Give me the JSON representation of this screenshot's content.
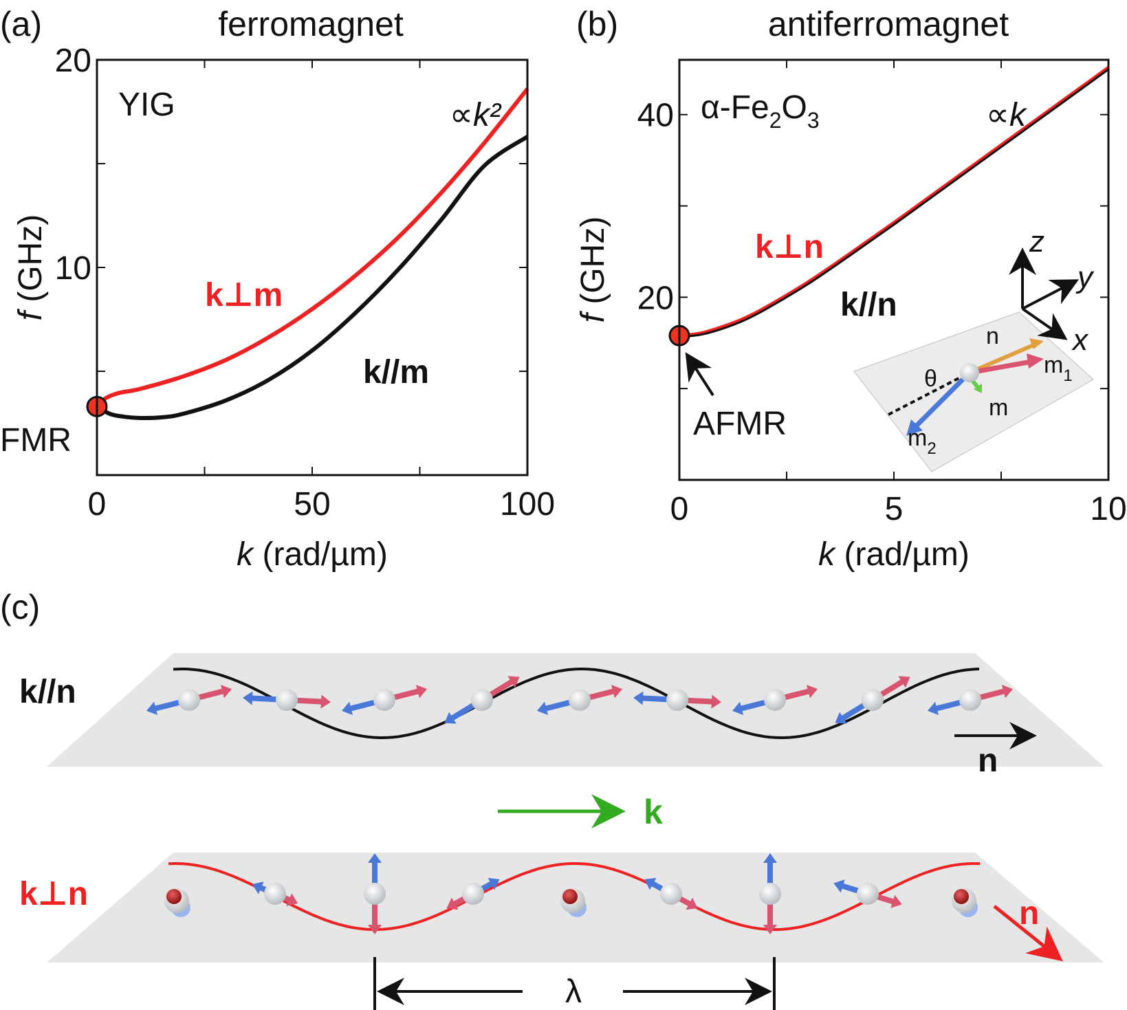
{
  "chart_data": [
    {
      "panel_label": "(a)",
      "title": "ferromagnet",
      "type": "line",
      "material": "YIG",
      "xlabel_var": "k",
      "xlabel_unit": " (rad/µm)",
      "ylabel_var": "f",
      "ylabel_unit": " (GHz)",
      "xlim": [
        0,
        100
      ],
      "ylim": [
        0,
        20
      ],
      "x_ticks": [
        0,
        50,
        100
      ],
      "y_ticks": [
        10,
        20
      ],
      "scaling": "∝k²",
      "point_label": "FMR",
      "point": {
        "x": 0,
        "y": 3.3
      },
      "series": [
        {
          "name": "k⊥m",
          "color": "#ee2222",
          "x": [
            0,
            2,
            5,
            10,
            20,
            30,
            40,
            50,
            60,
            70,
            80,
            90,
            100
          ],
          "y": [
            3.3,
            3.7,
            3.95,
            4.15,
            4.75,
            5.55,
            6.65,
            8.0,
            9.6,
            11.45,
            13.6,
            16.0,
            18.6
          ]
        },
        {
          "name": "k//m",
          "color": "#111111",
          "x": [
            0,
            3,
            6,
            10,
            15,
            20,
            30,
            40,
            50,
            60,
            70,
            80,
            90,
            100
          ],
          "y": [
            3.3,
            2.95,
            2.82,
            2.75,
            2.78,
            2.95,
            3.6,
            4.6,
            6.0,
            7.8,
            9.9,
            12.3,
            14.9,
            16.3
          ]
        }
      ]
    },
    {
      "panel_label": "(b)",
      "title": "antiferromagnet",
      "type": "line",
      "material": "α-Fe",
      "material_sub1": "2",
      "material_mid": "O",
      "material_sub2": "3",
      "xlabel_var": "k",
      "xlabel_unit": " (rad/µm)",
      "ylabel_var": "f",
      "ylabel_unit": " (GHz)",
      "xlim": [
        0,
        10
      ],
      "ylim": [
        0,
        46
      ],
      "x_ticks": [
        0,
        5,
        10
      ],
      "y_ticks": [
        20,
        40
      ],
      "scaling": "∝k",
      "point_label": "AFMR",
      "point": {
        "x": 0,
        "y": 15.8
      },
      "series": [
        {
          "name": "k⊥n",
          "color": "#ee2222",
          "x": [
            0,
            0.5,
            1,
            1.5,
            2,
            3,
            4,
            5,
            6,
            7,
            8,
            9,
            10
          ],
          "y": [
            15.8,
            16.1,
            16.8,
            17.7,
            18.9,
            21.7,
            24.9,
            28.2,
            31.6,
            35.0,
            38.4,
            41.8,
            45.2
          ]
        },
        {
          "name": "k//n",
          "color": "#111111",
          "x": [
            0,
            0.5,
            1,
            1.5,
            2,
            3,
            4,
            5,
            6,
            7,
            8,
            9,
            10
          ],
          "y": [
            15.8,
            16.05,
            16.7,
            17.6,
            18.8,
            21.6,
            24.8,
            28.1,
            31.5,
            34.9,
            38.3,
            41.7,
            45.1
          ]
        }
      ],
      "inset": {
        "axes": [
          "z",
          "y",
          "x"
        ],
        "vectors": [
          "n",
          "m",
          "m",
          "m"
        ],
        "vector_subs": [
          "",
          "1",
          "",
          "2"
        ],
        "angle": "θ"
      }
    }
  ],
  "panel_c": {
    "label": "(c)",
    "top_row_label": "k//n",
    "bottom_row_label": "k⊥n",
    "k_arrow_label": "k",
    "n_label_top": "n",
    "n_label_bottom": "n",
    "wavelength_label": "λ"
  },
  "colors": {
    "red": "#ee2222",
    "black": "#111111",
    "green": "#33aa22",
    "plane": "#e6e6e6",
    "spin_red": "#d9546e",
    "spin_blue": "#4a78d8"
  }
}
